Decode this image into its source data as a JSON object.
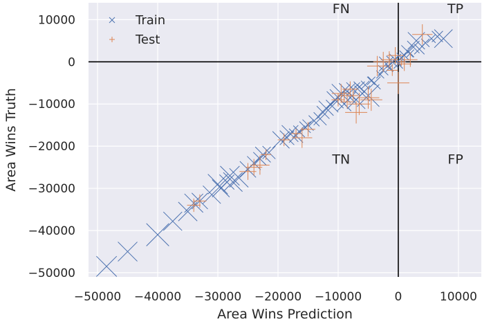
{
  "chart_data": {
    "type": "scatter",
    "xlabel": "Area Wins Prediction",
    "ylabel": "Area Wins Truth",
    "xlim": [
      -51500,
      13800
    ],
    "ylim": [
      -51000,
      14000
    ],
    "x_ticks": [
      -50000,
      -40000,
      -30000,
      -20000,
      -10000,
      0,
      10000
    ],
    "y_ticks": [
      10000,
      0,
      -10000,
      -20000,
      -30000,
      -40000,
      -50000
    ],
    "x_tick_labels": [
      "−50000",
      "−40000",
      "−30000",
      "−20000",
      "−10000",
      "0",
      "10000"
    ],
    "y_tick_labels": [
      "10000",
      "0",
      "−10000",
      "−20000",
      "−30000",
      "−40000",
      "−50000"
    ],
    "grid": true,
    "legend_position": "top-left",
    "quadrant_labels": [
      {
        "text": "FN",
        "x": -9500,
        "y": 11500
      },
      {
        "text": "TP",
        "x": 9500,
        "y": 11500
      },
      {
        "text": "TN",
        "x": -9500,
        "y": -24200
      },
      {
        "text": "FP",
        "x": 9500,
        "y": -24200
      }
    ],
    "colors": {
      "train": "#4c72b0",
      "test": "#dd8452",
      "background": "#eaeaf2",
      "grid": "#ffffff",
      "axes": "#000000"
    },
    "series": [
      {
        "name": "Train",
        "marker": "x",
        "points": [
          [
            -48500,
            -48500
          ],
          [
            -45000,
            -45000
          ],
          [
            -40000,
            -41000
          ],
          [
            -37500,
            -37800
          ],
          [
            -35000,
            -35500
          ],
          [
            -34000,
            -33500
          ],
          [
            -33000,
            -33000
          ],
          [
            -31000,
            -31500
          ],
          [
            -30000,
            -29000
          ],
          [
            -29500,
            -30000
          ],
          [
            -28500,
            -28500
          ],
          [
            -28000,
            -27000
          ],
          [
            -27500,
            -28500
          ],
          [
            -26500,
            -27500
          ],
          [
            -25000,
            -25500
          ],
          [
            -24000,
            -24000
          ],
          [
            -23000,
            -23000
          ],
          [
            -22500,
            -22000
          ],
          [
            -21500,
            -21500
          ],
          [
            -19500,
            -18500
          ],
          [
            -18500,
            -18000
          ],
          [
            -18000,
            -17000
          ],
          [
            -17000,
            -17500
          ],
          [
            -16500,
            -16500
          ],
          [
            -15500,
            -15500
          ],
          [
            -15000,
            -15000
          ],
          [
            -14000,
            -14000
          ],
          [
            -13000,
            -13500
          ],
          [
            -12500,
            -12000
          ],
          [
            -12000,
            -11000
          ],
          [
            -11000,
            -10500
          ],
          [
            -10500,
            -9000
          ],
          [
            -10000,
            -8500
          ],
          [
            -9500,
            -7500
          ],
          [
            -9000,
            -10000
          ],
          [
            -8500,
            -7000
          ],
          [
            -8000,
            -8500
          ],
          [
            -7500,
            -6500
          ],
          [
            -7000,
            -9000
          ],
          [
            -6500,
            -6000
          ],
          [
            -6000,
            -7500
          ],
          [
            -5500,
            -5500
          ],
          [
            -5000,
            -8000
          ],
          [
            -4500,
            -4500
          ],
          [
            -4000,
            -5000
          ],
          [
            -3000,
            -3000
          ],
          [
            -2500,
            -2000
          ],
          [
            -2000,
            -500
          ],
          [
            -1500,
            -1500
          ],
          [
            -1000,
            0
          ],
          [
            -500,
            500
          ],
          [
            0,
            -500
          ],
          [
            500,
            1000
          ],
          [
            1000,
            1500
          ],
          [
            1500,
            2500
          ],
          [
            2000,
            2000
          ],
          [
            2500,
            3500
          ],
          [
            3000,
            5000
          ],
          [
            3500,
            3000
          ],
          [
            4500,
            4500
          ],
          [
            5500,
            5500
          ],
          [
            6500,
            6000
          ],
          [
            7500,
            5500
          ]
        ]
      },
      {
        "name": "Test",
        "marker": "+",
        "points": [
          [
            -34000,
            -34000
          ],
          [
            -33000,
            -33000
          ],
          [
            -25000,
            -26000
          ],
          [
            -24000,
            -25000
          ],
          [
            -23000,
            -24500
          ],
          [
            -22000,
            -22000
          ],
          [
            -19000,
            -18500
          ],
          [
            -17000,
            -17000
          ],
          [
            -16000,
            -18000
          ],
          [
            -15000,
            -16000
          ],
          [
            -10000,
            -9000
          ],
          [
            -9500,
            -7500
          ],
          [
            -9000,
            -8000
          ],
          [
            -8500,
            -9500
          ],
          [
            -8000,
            -6500
          ],
          [
            -7500,
            -8000
          ],
          [
            -7000,
            -12000
          ],
          [
            -6500,
            -10000
          ],
          [
            -5000,
            -8500
          ],
          [
            -4500,
            -9000
          ],
          [
            -3500,
            -1000
          ],
          [
            -2500,
            0
          ],
          [
            -1500,
            500
          ],
          [
            -1000,
            -2000
          ],
          [
            -500,
            1500
          ],
          [
            0,
            -5000
          ],
          [
            500,
            0
          ],
          [
            1000,
            -500
          ],
          [
            2000,
            500
          ],
          [
            4000,
            6500
          ]
        ]
      }
    ]
  }
}
